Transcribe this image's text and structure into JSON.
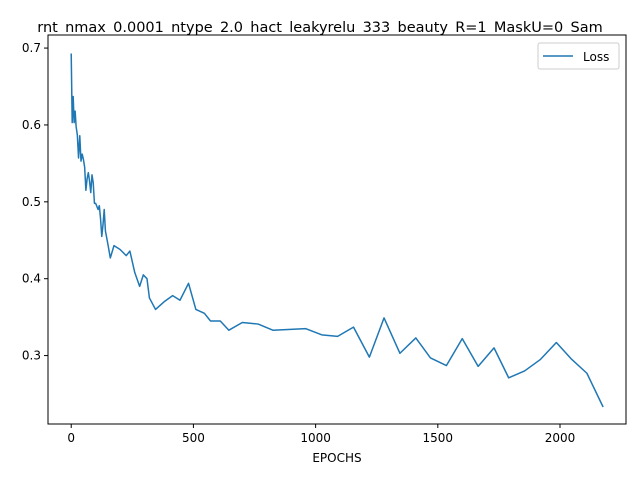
{
  "chart_data": {
    "type": "line",
    "title": "rnt_nmax_0.0001_ntype_2.0_hact_leakyrelu_333_beauty_R=1_MaskU=0_Sam",
    "xlabel": "EPOCHS",
    "ylabel": "",
    "xlim": [
      -95,
      2270
    ],
    "ylim": [
      0.211,
      0.717
    ],
    "xticks": [
      0,
      500,
      1000,
      1500,
      2000
    ],
    "yticks": [
      0.3,
      0.4,
      0.5,
      0.6,
      0.7
    ],
    "xtick_labels": [
      "0",
      "500",
      "1000",
      "1500",
      "2000"
    ],
    "ytick_labels": [
      "0.3",
      "0.4",
      "0.5",
      "0.6",
      "0.7"
    ],
    "grid": false,
    "legend_position": "top-right",
    "series": [
      {
        "name": "Loss",
        "color": "#1f77b4",
        "x": [
          0,
          4,
          8,
          12,
          16,
          20,
          25,
          30,
          35,
          40,
          45,
          50,
          55,
          60,
          65,
          70,
          75,
          80,
          85,
          90,
          95,
          100,
          110,
          115,
          120,
          125,
          130,
          135,
          140,
          150,
          160,
          175,
          200,
          225,
          240,
          260,
          280,
          295,
          310,
          320,
          345,
          380,
          415,
          445,
          480,
          510,
          545,
          570,
          610,
          645,
          700,
          765,
          825,
          960,
          1025,
          1090,
          1155,
          1220,
          1280,
          1345,
          1410,
          1470,
          1535,
          1600,
          1665,
          1730,
          1790,
          1855,
          1920,
          1985,
          2045,
          2110,
          2175
        ],
        "y": [
          0.692,
          0.603,
          0.637,
          0.603,
          0.618,
          0.598,
          0.587,
          0.557,
          0.586,
          0.553,
          0.562,
          0.555,
          0.545,
          0.515,
          0.53,
          0.538,
          0.527,
          0.512,
          0.535,
          0.525,
          0.498,
          0.498,
          0.49,
          0.495,
          0.478,
          0.455,
          0.47,
          0.49,
          0.462,
          0.445,
          0.427,
          0.443,
          0.438,
          0.43,
          0.436,
          0.408,
          0.39,
          0.405,
          0.4,
          0.375,
          0.36,
          0.37,
          0.378,
          0.372,
          0.394,
          0.36,
          0.355,
          0.345,
          0.345,
          0.333,
          0.343,
          0.341,
          0.333,
          0.335,
          0.327,
          0.325,
          0.337,
          0.298,
          0.349,
          0.303,
          0.323,
          0.297,
          0.287,
          0.322,
          0.286,
          0.31,
          0.271,
          0.28,
          0.295,
          0.317,
          0.296,
          0.277,
          0.234
        ]
      }
    ]
  }
}
